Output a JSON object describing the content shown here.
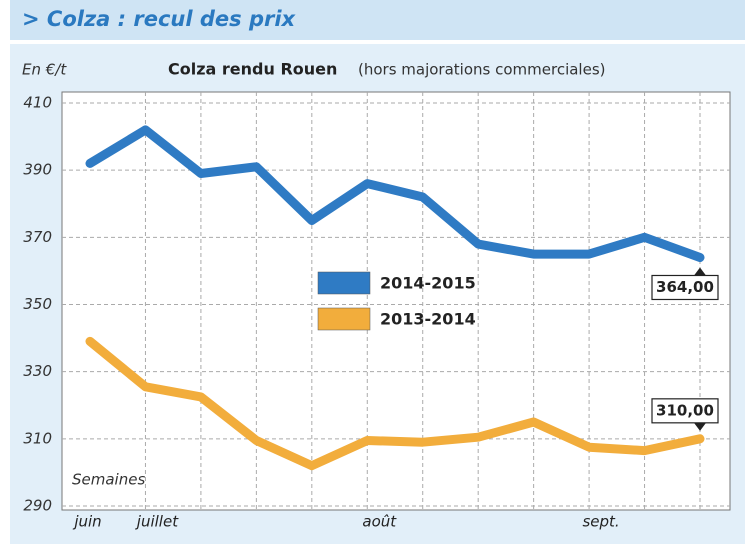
{
  "header": {
    "title": "> Colza : recul des prix"
  },
  "chart_data": {
    "type": "line",
    "title": "Colza rendu Rouen",
    "subtitle": "(hors majorations commerciales)",
    "y_label": "En €/t",
    "x_label": "Semaines",
    "categories": [
      "juin",
      "juillet",
      null,
      null,
      null,
      "août",
      null,
      null,
      null,
      "sept.",
      null,
      null
    ],
    "series": [
      {
        "name": "2014-2015",
        "color": "#2f7bc4",
        "values": [
          392,
          402,
          389,
          391,
          375,
          386,
          382,
          368,
          365,
          365,
          370,
          364
        ],
        "value_labels": [
          null,
          null,
          null,
          null,
          null,
          null,
          null,
          null,
          null,
          null,
          null,
          "364,00"
        ]
      },
      {
        "name": "2013-2014",
        "color": "#f2ad3c",
        "values": [
          339,
          325.5,
          322.5,
          309.5,
          302,
          309.5,
          309,
          310.5,
          315,
          307.5,
          306.5,
          310
        ],
        "value_labels": [
          null,
          null,
          null,
          null,
          null,
          null,
          null,
          null,
          null,
          null,
          null,
          "310,00"
        ]
      }
    ],
    "ylim": [
      290,
      410
    ],
    "yticks": [
      290,
      310,
      330,
      350,
      370,
      390,
      410
    ],
    "grid": true
  }
}
